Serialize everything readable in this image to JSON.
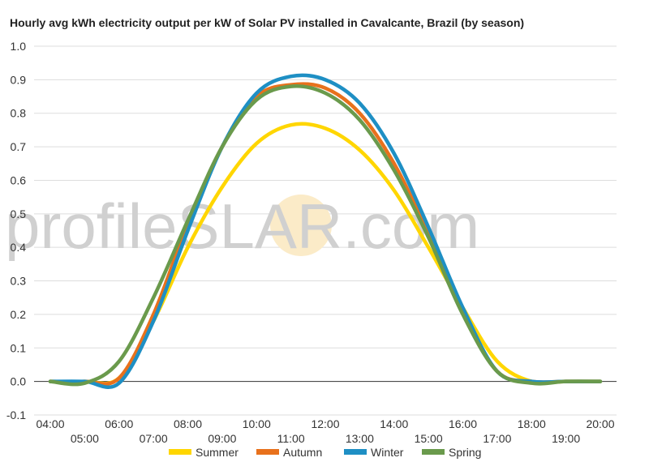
{
  "chart_data": {
    "type": "line",
    "title": "Hourly avg kWh electricity output per kW of Solar PV installed in Cavalcante, Brazil (by season)",
    "watermark": {
      "left": "profile",
      "middle": "S",
      "right": "LAR.com"
    },
    "ylim": [
      -0.1,
      1.0
    ],
    "yticks": [
      "1.0",
      "0.9",
      "0.8",
      "0.7",
      "0.6",
      "0.5",
      "0.4",
      "0.3",
      "0.2",
      "0.1",
      "0.0",
      "-0.1"
    ],
    "x": [
      4,
      5,
      6,
      7,
      8,
      9,
      10,
      11,
      12,
      13,
      14,
      15,
      16,
      17,
      18,
      19,
      20
    ],
    "x_tick_labels": [
      "04:00",
      "05:00",
      "06:00",
      "07:00",
      "08:00",
      "09:00",
      "10:00",
      "11:00",
      "12:00",
      "13:00",
      "14:00",
      "15:00",
      "16:00",
      "17:00",
      "18:00",
      "19:00",
      "20:00"
    ],
    "grid": true,
    "legend_position": "bottom",
    "series": [
      {
        "name": "Summer",
        "color": "#FFD600",
        "values": [
          0,
          0,
          0.01,
          0.18,
          0.4,
          0.58,
          0.71,
          0.765,
          0.755,
          0.69,
          0.57,
          0.4,
          0.22,
          0.06,
          0,
          0,
          0
        ]
      },
      {
        "name": "Autumn",
        "color": "#E8711C",
        "values": [
          0,
          0,
          0.01,
          0.2,
          0.47,
          0.7,
          0.85,
          0.885,
          0.875,
          0.8,
          0.65,
          0.44,
          0.21,
          0.03,
          0,
          0,
          0
        ]
      },
      {
        "name": "Winter",
        "color": "#1E8FC4",
        "values": [
          0,
          0,
          -0.005,
          0.18,
          0.45,
          0.7,
          0.86,
          0.91,
          0.9,
          0.83,
          0.68,
          0.46,
          0.22,
          0.03,
          0,
          0,
          0
        ]
      },
      {
        "name": "Spring",
        "color": "#6A9A4C",
        "values": [
          0,
          -0.005,
          0.06,
          0.25,
          0.48,
          0.7,
          0.84,
          0.88,
          0.86,
          0.78,
          0.63,
          0.43,
          0.2,
          0.03,
          -0.005,
          0,
          0
        ]
      }
    ]
  }
}
